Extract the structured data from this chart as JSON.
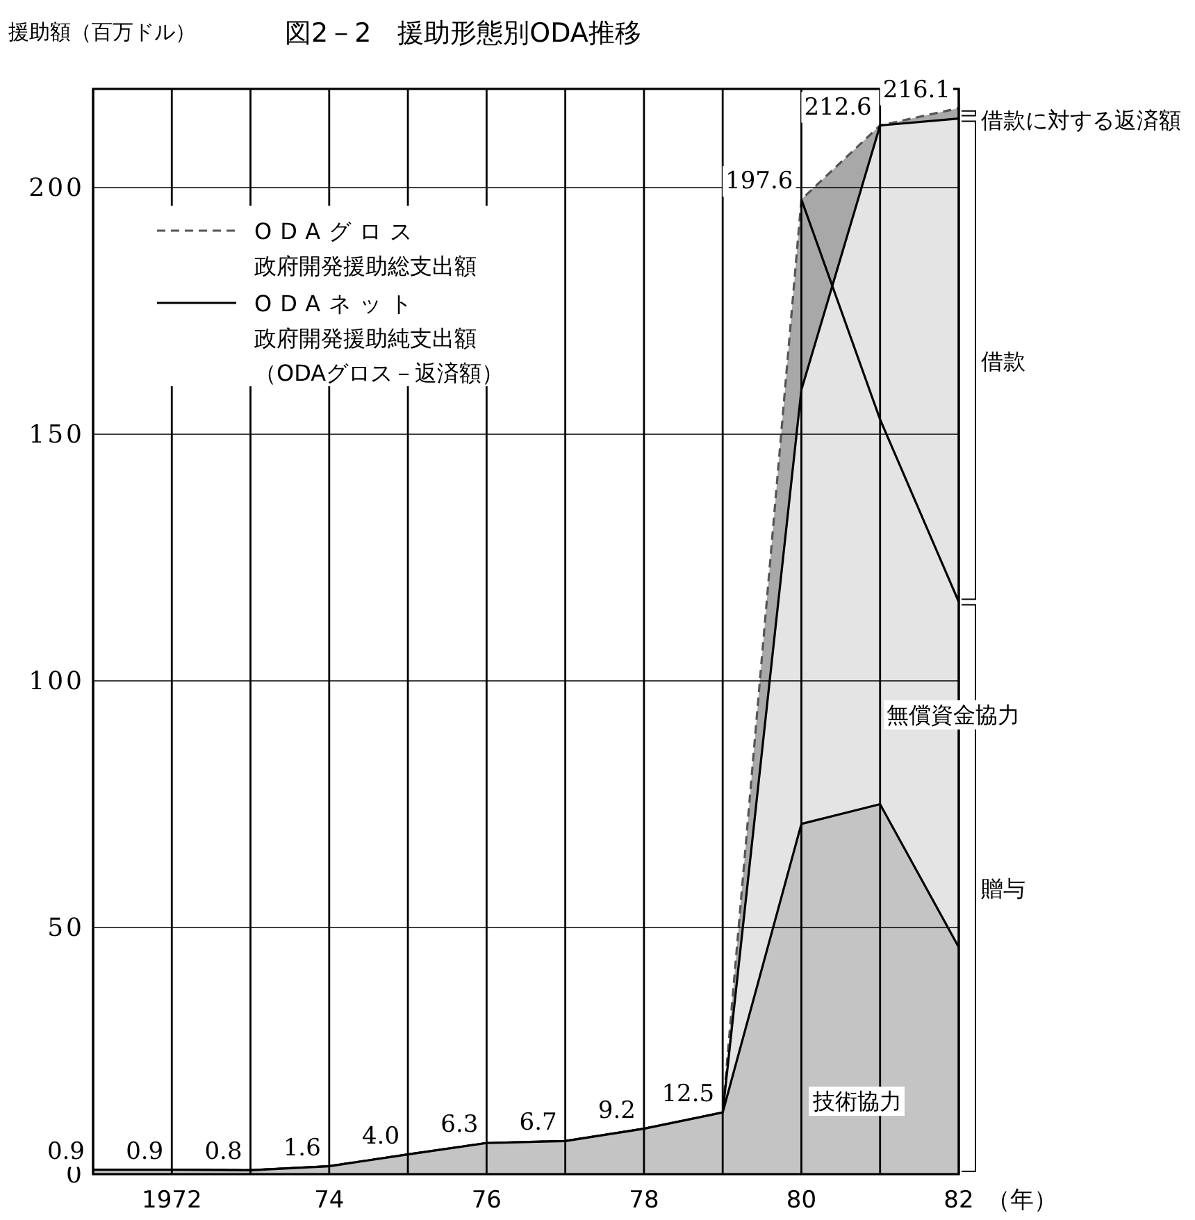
{
  "chart_data": {
    "type": "area",
    "title": "図2－2　援助形態別ODA推移",
    "ylabel": "援助額（百万ドル）",
    "xlabel": "（年）",
    "x": [
      1971,
      1972,
      1973,
      1974,
      1975,
      1976,
      1977,
      1978,
      1979,
      1980,
      1981,
      1982
    ],
    "xlim": [
      1971,
      1982
    ],
    "xticks": [
      {
        "value": 1971,
        "label": null
      },
      1972,
      {
        "value": 1973,
        "label": null
      },
      {
        "value": 1974,
        "label": "74"
      },
      {
        "value": 1975,
        "label": null
      },
      {
        "value": 1976,
        "label": "76"
      },
      {
        "value": 1977,
        "label": null
      },
      {
        "value": 1978,
        "label": "78"
      },
      {
        "value": 1979,
        "label": null
      },
      {
        "value": 1980,
        "label": "80"
      },
      {
        "value": 1981,
        "label": null
      },
      {
        "value": 1982,
        "label": "82"
      }
    ],
    "ylim": [
      0,
      220
    ],
    "yticks": [
      0,
      50,
      100,
      150,
      200
    ],
    "grid": true,
    "legend": "top left",
    "series": [
      {
        "name": "ODAグロス",
        "color": "#a8a8a8",
        "line_style": "dashed",
        "values": [
          0.9,
          0.9,
          0.8,
          1.6,
          4.0,
          6.3,
          6.7,
          9.2,
          12.5,
          197.6,
          212.6,
          216.1
        ],
        "value_labels": [
          "0.9",
          "0.9",
          "0.8",
          "1.6",
          "4.0",
          "6.3",
          "6.7",
          "9.2",
          "12.5",
          "197.6",
          "212.6",
          "216.1"
        ]
      },
      {
        "name": "ODAネット",
        "color": "#e4e4e4",
        "line_style": "solid",
        "values": [
          0.9,
          0.9,
          0.8,
          1.6,
          4.0,
          6.3,
          6.7,
          9.2,
          12.5,
          159,
          212.6,
          214
        ]
      },
      {
        "type": "line",
        "color": "#000000",
        "values": [
          null,
          null,
          null,
          null,
          null,
          null,
          null,
          null,
          null,
          197.6,
          153,
          116
        ]
      },
      {
        "color": "#c4c4c4",
        "values": [
          0.9,
          0.9,
          0.8,
          1.6,
          4.0,
          6.3,
          6.7,
          9.2,
          12.5,
          71,
          75,
          46
        ]
      }
    ],
    "annotations": [
      "政府開発援助総支出額",
      "政府開発援助純支出額",
      "（ODAグロス－返済額）",
      "技術協力",
      "無償資金協力",
      "贈与",
      "借款",
      "借款に対する返済額"
    ]
  }
}
